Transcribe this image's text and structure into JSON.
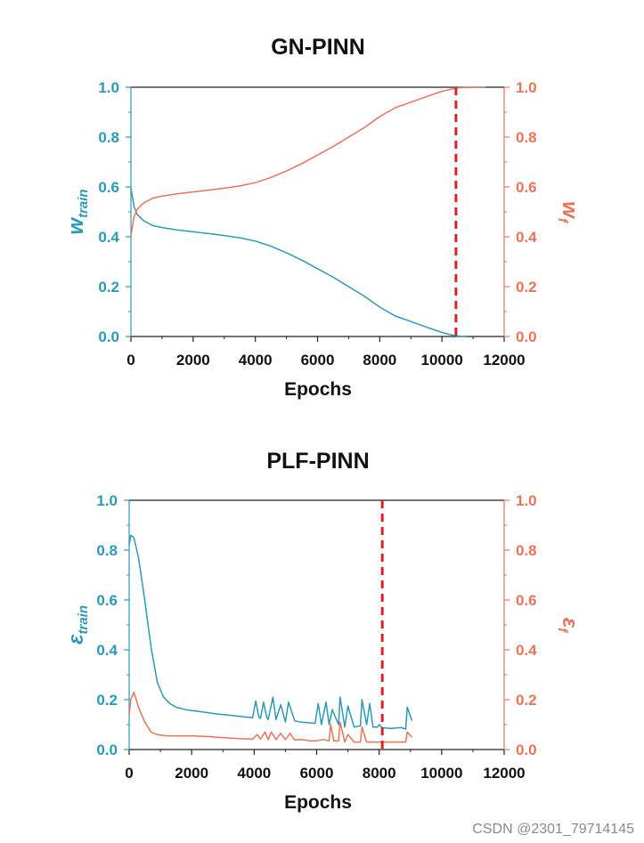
{
  "chart_data": [
    {
      "type": "line",
      "title": "GN-PINN",
      "xlabel": "Epochs",
      "ylabel_left": {
        "base": "w",
        "sub": "train"
      },
      "ylabel_right": {
        "base": "w",
        "sub": "f"
      },
      "xlim": [
        0,
        12000
      ],
      "ylim_left": [
        0,
        1
      ],
      "ylim_right": [
        0,
        1
      ],
      "xticks": [
        "0",
        "2000",
        "4000",
        "6000",
        "8000",
        "10000",
        "12000"
      ],
      "yticks_left": [
        "0.0",
        "0.2",
        "0.4",
        "0.6",
        "0.8",
        "1.0"
      ],
      "yticks_right": [
        "0.0",
        "0.2",
        "0.4",
        "0.6",
        "0.8",
        "1.0"
      ],
      "colors": {
        "left": "#2b9ab8",
        "right": "#e8735a",
        "marker": "#e02020"
      },
      "vline_x": 10450,
      "series": [
        {
          "name": "w_train",
          "axis": "left",
          "color": "#2b9ab8",
          "x": [
            0,
            100,
            200,
            400,
            700,
            1000,
            1500,
            2000,
            2500,
            3000,
            3500,
            4000,
            4500,
            5000,
            5500,
            6000,
            6500,
            7000,
            7500,
            8000,
            8500,
            9000,
            9500,
            10000,
            10300,
            10600,
            10800
          ],
          "values": [
            0.595,
            0.52,
            0.49,
            0.465,
            0.445,
            0.437,
            0.427,
            0.42,
            0.413,
            0.405,
            0.396,
            0.383,
            0.362,
            0.336,
            0.306,
            0.272,
            0.238,
            0.2,
            0.162,
            0.118,
            0.082,
            0.06,
            0.038,
            0.016,
            0.006,
            0.0,
            0.0
          ]
        },
        {
          "name": "w_f",
          "axis": "right",
          "color": "#e8735a",
          "x": [
            0,
            100,
            200,
            400,
            700,
            1000,
            1500,
            2000,
            2500,
            3000,
            3500,
            4000,
            4500,
            5000,
            5500,
            6000,
            6500,
            7000,
            7500,
            8000,
            8500,
            9000,
            9500,
            10000,
            10500,
            11000,
            11400
          ],
          "values": [
            0.405,
            0.48,
            0.51,
            0.535,
            0.555,
            0.563,
            0.573,
            0.58,
            0.587,
            0.595,
            0.604,
            0.617,
            0.638,
            0.664,
            0.694,
            0.728,
            0.762,
            0.8,
            0.838,
            0.882,
            0.918,
            0.94,
            0.962,
            0.984,
            0.998,
            1.0,
            1.0
          ]
        }
      ]
    },
    {
      "type": "line",
      "title": "PLF-PINN",
      "xlabel": "Epochs",
      "ylabel_left": {
        "base": "ε",
        "sub": "train"
      },
      "ylabel_right": {
        "base": "ε",
        "sub": "f"
      },
      "xlim": [
        0,
        12000
      ],
      "ylim_left": [
        0,
        1
      ],
      "ylim_right": [
        0,
        1
      ],
      "xticks": [
        "0",
        "2000",
        "4000",
        "6000",
        "8000",
        "10000",
        "12000"
      ],
      "yticks_left": [
        "0.0",
        "0.2",
        "0.4",
        "0.6",
        "0.8",
        "1.0"
      ],
      "yticks_right": [
        "0.0",
        "0.2",
        "0.4",
        "0.6",
        "0.8",
        "1.0"
      ],
      "colors": {
        "left": "#2b9ab8",
        "right": "#e8735a",
        "marker": "#e02020"
      },
      "vline_x": 8100,
      "series": [
        {
          "name": "ε_train",
          "axis": "left",
          "color": "#2b9ab8",
          "x": [
            0,
            50,
            150,
            300,
            500,
            700,
            900,
            1100,
            1300,
            1500,
            1800,
            2100,
            2400,
            2800,
            3200,
            3600,
            3950,
            4050,
            4150,
            4200,
            4300,
            4400,
            4450,
            4600,
            4700,
            4850,
            5000,
            5100,
            5300,
            5500,
            5700,
            5950,
            6050,
            6150,
            6300,
            6400,
            6500,
            6700,
            6750,
            6900,
            7000,
            7200,
            7400,
            7450,
            7600,
            7700,
            7800,
            7950,
            8000,
            8100,
            8400,
            8700,
            8850,
            8900,
            9050
          ],
          "values": [
            0.82,
            0.86,
            0.85,
            0.77,
            0.6,
            0.41,
            0.27,
            0.21,
            0.185,
            0.17,
            0.16,
            0.155,
            0.15,
            0.143,
            0.138,
            0.132,
            0.128,
            0.195,
            0.13,
            0.125,
            0.19,
            0.13,
            0.12,
            0.21,
            0.12,
            0.18,
            0.11,
            0.19,
            0.115,
            0.11,
            0.108,
            0.105,
            0.185,
            0.1,
            0.19,
            0.1,
            0.16,
            0.1,
            0.21,
            0.09,
            0.175,
            0.09,
            0.095,
            0.2,
            0.1,
            0.185,
            0.09,
            0.09,
            0.1,
            0.087,
            0.085,
            0.088,
            0.082,
            0.17,
            0.115
          ]
        },
        {
          "name": "ε_f",
          "axis": "right",
          "color": "#e8735a",
          "x": [
            0,
            50,
            150,
            300,
            500,
            700,
            900,
            1200,
            1600,
            2000,
            2500,
            3000,
            3500,
            3950,
            4100,
            4200,
            4350,
            4450,
            4550,
            4700,
            4850,
            5000,
            5150,
            5300,
            5500,
            5800,
            6000,
            6200,
            6400,
            6450,
            6550,
            6700,
            6750,
            6900,
            7000,
            7200,
            7400,
            7450,
            7600,
            7800,
            8000,
            8200,
            8500,
            8850,
            8900,
            9050
          ],
          "values": [
            0.14,
            0.2,
            0.23,
            0.17,
            0.11,
            0.07,
            0.06,
            0.055,
            0.055,
            0.055,
            0.052,
            0.048,
            0.044,
            0.042,
            0.06,
            0.042,
            0.07,
            0.04,
            0.07,
            0.04,
            0.065,
            0.04,
            0.065,
            0.038,
            0.04,
            0.035,
            0.035,
            0.04,
            0.035,
            0.1,
            0.035,
            0.035,
            0.11,
            0.03,
            0.06,
            0.03,
            0.03,
            0.09,
            0.03,
            0.03,
            0.03,
            0.03,
            0.03,
            0.03,
            0.07,
            0.05
          ]
        }
      ]
    }
  ],
  "watermark": "CSDN @2301_79714145"
}
